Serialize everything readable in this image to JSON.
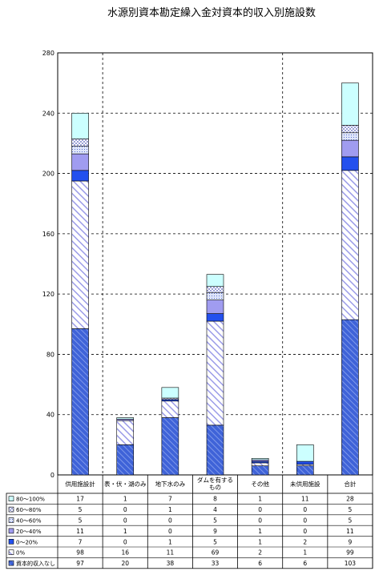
{
  "chart_data": {
    "type": "bar",
    "stacked": true,
    "title": "水源別資本勘定繰入金対資本的収入別施設数",
    "xlabel": "",
    "ylabel": "",
    "ylim": [
      0,
      280
    ],
    "yticks": [
      "0",
      "40",
      "80",
      "120",
      "160",
      "200",
      "240",
      "280"
    ],
    "grid": true,
    "categories": [
      "供用施設計",
      "表・伏・湖のみ",
      "地下水のみ",
      "ダムを有するもの",
      "その他",
      "未供用施設",
      "合計"
    ],
    "category_lines": [
      [
        "供用施設計"
      ],
      [
        "表・伏・湖のみ"
      ],
      [
        "地下水のみ"
      ],
      [
        "ダムを有する",
        "もの"
      ],
      [
        "その他"
      ],
      [
        "未供用施設"
      ],
      [
        "合計"
      ]
    ],
    "series": [
      {
        "name": "資本的収入なし",
        "values": [
          97,
          20,
          38,
          33,
          6,
          6,
          103
        ],
        "color": "#3f63d8",
        "pattern": "hatch-blue"
      },
      {
        "name": "0%",
        "values": [
          98,
          16,
          11,
          69,
          2,
          1,
          99
        ],
        "color": "#9b9ce8",
        "pattern": "hatch-light"
      },
      {
        "name": "0～20%",
        "values": [
          7,
          0,
          1,
          5,
          1,
          2,
          9
        ],
        "color": "#2350ee",
        "pattern": "solid"
      },
      {
        "name": "20～40%",
        "values": [
          11,
          1,
          0,
          9,
          1,
          0,
          11
        ],
        "color": "#a09cf0",
        "pattern": "solid"
      },
      {
        "name": "40～60%",
        "values": [
          5,
          0,
          0,
          5,
          0,
          0,
          5
        ],
        "color": "#c8d2f2",
        "pattern": "dots"
      },
      {
        "name": "60～80%",
        "values": [
          5,
          0,
          1,
          4,
          0,
          0,
          5
        ],
        "color": "#ffffff",
        "pattern": "checker"
      },
      {
        "name": "80～100%",
        "values": [
          17,
          1,
          7,
          8,
          1,
          11,
          28
        ],
        "color": "#ccffff",
        "pattern": "solid"
      }
    ],
    "table_order": [
      "80～100%",
      "60～80%",
      "40～60%",
      "20～40%",
      "0～20%",
      "0%",
      "資本的収入なし"
    ]
  }
}
